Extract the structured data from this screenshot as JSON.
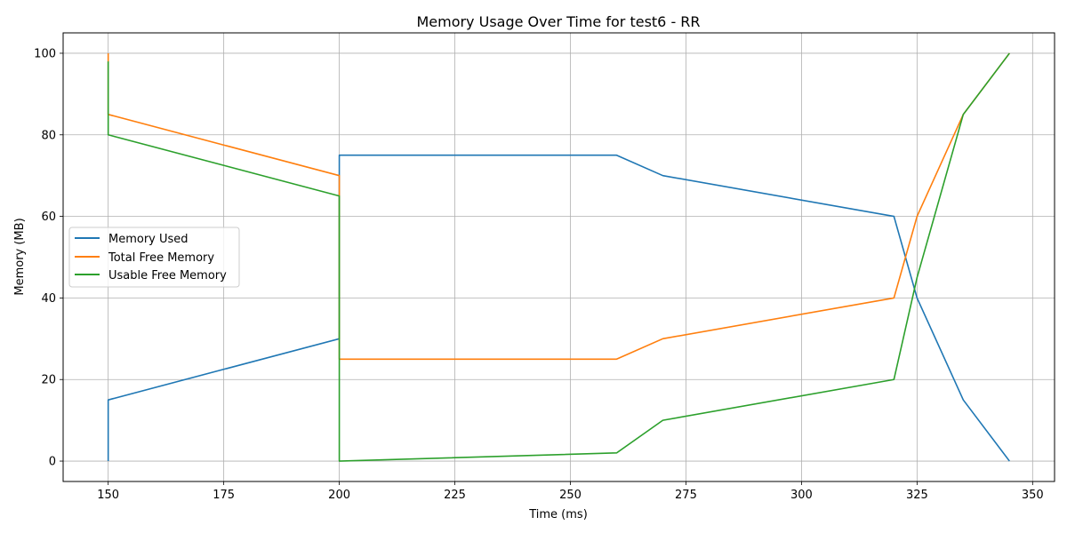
{
  "chart_data": {
    "type": "line",
    "title": "Memory Usage Over Time for test6 - RR",
    "xlabel": "Time (ms)",
    "ylabel": "Memory (MB)",
    "xlim": [
      140.25,
      354.75
    ],
    "ylim": [
      -5,
      105
    ],
    "xticks": [
      150,
      175,
      200,
      225,
      250,
      275,
      300,
      325,
      350
    ],
    "yticks": [
      0,
      20,
      40,
      60,
      80,
      100
    ],
    "grid": true,
    "legend_position": "center-left",
    "series": [
      {
        "name": "Memory Used",
        "color": "#1f77b4",
        "points": [
          [
            150,
            0
          ],
          [
            150,
            15
          ],
          [
            200,
            30
          ],
          [
            200,
            75
          ],
          [
            260,
            75
          ],
          [
            270,
            70
          ],
          [
            320,
            60
          ],
          [
            325,
            40
          ],
          [
            335,
            15
          ],
          [
            345,
            0
          ]
        ]
      },
      {
        "name": "Total Free Memory",
        "color": "#ff7f0e",
        "points": [
          [
            150,
            100
          ],
          [
            150,
            85
          ],
          [
            200,
            70
          ],
          [
            200,
            25
          ],
          [
            260,
            25
          ],
          [
            270,
            30
          ],
          [
            320,
            40
          ],
          [
            325,
            60
          ],
          [
            335,
            85
          ],
          [
            345,
            100
          ]
        ]
      },
      {
        "name": "Usable Free Memory",
        "color": "#2ca02c",
        "points": [
          [
            150,
            98
          ],
          [
            150,
            80
          ],
          [
            200,
            65
          ],
          [
            200,
            0
          ],
          [
            260,
            2
          ],
          [
            270,
            10
          ],
          [
            320,
            20
          ],
          [
            325,
            45
          ],
          [
            335,
            85
          ],
          [
            345,
            100
          ]
        ]
      }
    ]
  }
}
